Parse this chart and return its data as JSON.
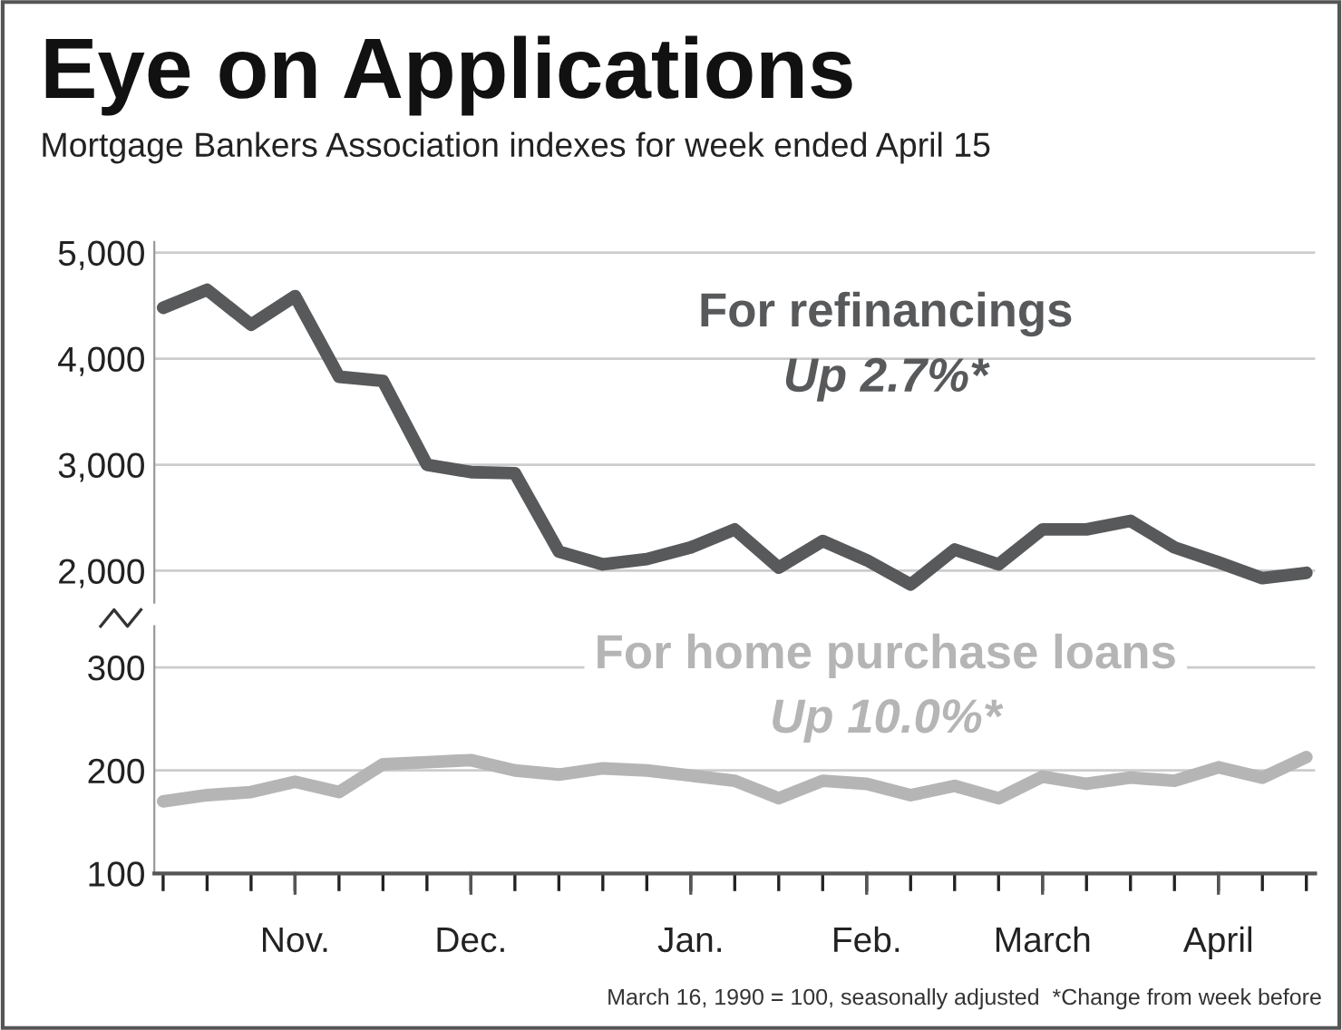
{
  "chart_data": [
    {
      "type": "line",
      "title": "Eye on Applications",
      "subtitle": "Mortgage Bankers Association indexes for week ended April 15",
      "categories": [
        null,
        null,
        null,
        null,
        null,
        null,
        null,
        null,
        null,
        null,
        null,
        null,
        null,
        null,
        null,
        null,
        null,
        null,
        null,
        null,
        null,
        null,
        null,
        null,
        null,
        null,
        null
      ],
      "series": [
        {
          "name": "For refinancings",
          "color": "#58595b",
          "values": [
            4480,
            4650,
            4320,
            4590,
            3830,
            3790,
            3000,
            2930,
            2920,
            2180,
            2060,
            2110,
            2220,
            2390,
            2030,
            2280,
            2100,
            1870,
            2200,
            2060,
            2390,
            2390,
            2470,
            2220,
            2080,
            1930,
            1980
          ]
        }
      ],
      "annotations": [
        "Up 2.7%*"
      ],
      "ylim": [
        1700,
        5100
      ],
      "yticks": [
        {
          "value": 2000,
          "label": "2,000"
        },
        {
          "value": 3000,
          "label": "3,000"
        },
        {
          "value": 4000,
          "label": "4,000"
        },
        {
          "value": 5000,
          "label": "5,000"
        }
      ],
      "grid": "y",
      "tick_labels": "y",
      "legend": false
    },
    {
      "type": "line",
      "categories": [
        null,
        null,
        null,
        "Nov.",
        null,
        null,
        null,
        "Dec.",
        null,
        null,
        null,
        null,
        "Jan.",
        null,
        null,
        null,
        "Feb.",
        null,
        null,
        null,
        "March",
        null,
        null,
        null,
        "April",
        null,
        null
      ],
      "series": [
        {
          "name": "For home purchase loans",
          "color": "#b5b5b5",
          "values": [
            170,
            176,
            179,
            189,
            179,
            206,
            208,
            210,
            200,
            196,
            202,
            200,
            195,
            190,
            173,
            190,
            187,
            176,
            185,
            173,
            194,
            187,
            193,
            190,
            203,
            193,
            213
          ]
        }
      ],
      "annotations": [
        "Up 10.0%*",
        "March 16, 1990 = 100, seasonally adjusted  *Change from week before"
      ],
      "ylim": [
        100,
        340
      ],
      "yticks": [
        100,
        200,
        300
      ],
      "grid": "y",
      "legend": false
    }
  ]
}
